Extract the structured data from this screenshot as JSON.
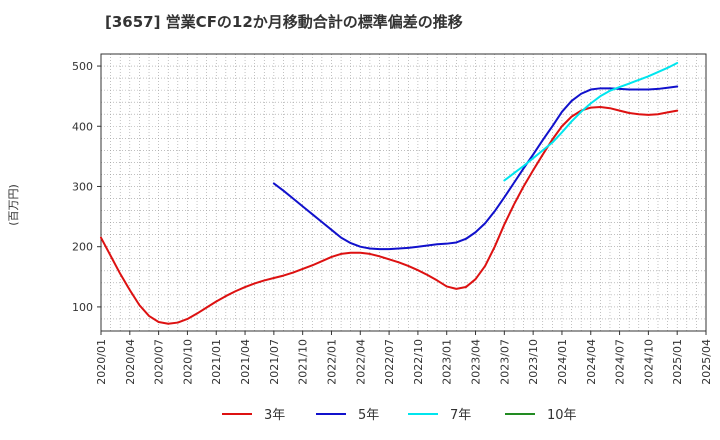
{
  "chart_data": {
    "type": "line",
    "title": "[3657]  営業CFの12か月移動合計の標準偏差の推移",
    "ylabel": "(百万円)",
    "xlabel": "",
    "ylim": [
      60,
      520
    ],
    "yticks": [
      100,
      200,
      300,
      400,
      500
    ],
    "x_tick_labels": [
      "2020/01",
      "2020/04",
      "2020/07",
      "2020/10",
      "2021/01",
      "2021/04",
      "2021/07",
      "2021/10",
      "2022/01",
      "2022/04",
      "2022/07",
      "2022/10",
      "2023/01",
      "2023/04",
      "2023/07",
      "2023/10",
      "2024/01",
      "2024/04",
      "2024/07",
      "2024/10",
      "2025/01",
      "2025/04"
    ],
    "grid": true,
    "legend_position": "bottom",
    "series": [
      {
        "name": "3年",
        "color": "#dd1111",
        "points": [
          [
            "2020/01",
            215
          ],
          [
            "2020/02",
            185
          ],
          [
            "2020/03",
            155
          ],
          [
            "2020/04",
            128
          ],
          [
            "2020/05",
            103
          ],
          [
            "2020/06",
            85
          ],
          [
            "2020/07",
            75
          ],
          [
            "2020/08",
            72
          ],
          [
            "2020/09",
            74
          ],
          [
            "2020/10",
            80
          ],
          [
            "2020/11",
            89
          ],
          [
            "2020/12",
            99
          ],
          [
            "2021/01",
            109
          ],
          [
            "2021/02",
            118
          ],
          [
            "2021/03",
            126
          ],
          [
            "2021/04",
            133
          ],
          [
            "2021/05",
            139
          ],
          [
            "2021/06",
            144
          ],
          [
            "2021/07",
            148
          ],
          [
            "2021/08",
            152
          ],
          [
            "2021/09",
            157
          ],
          [
            "2021/10",
            163
          ],
          [
            "2021/11",
            169
          ],
          [
            "2021/12",
            176
          ],
          [
            "2022/01",
            183
          ],
          [
            "2022/02",
            188
          ],
          [
            "2022/03",
            190
          ],
          [
            "2022/04",
            190
          ],
          [
            "2022/05",
            188
          ],
          [
            "2022/06",
            184
          ],
          [
            "2022/07",
            179
          ],
          [
            "2022/08",
            174
          ],
          [
            "2022/09",
            168
          ],
          [
            "2022/10",
            161
          ],
          [
            "2022/11",
            153
          ],
          [
            "2022/12",
            144
          ],
          [
            "2023/01",
            134
          ],
          [
            "2023/02",
            130
          ],
          [
            "2023/03",
            133
          ],
          [
            "2023/04",
            146
          ],
          [
            "2023/05",
            168
          ],
          [
            "2023/06",
            200
          ],
          [
            "2023/07",
            237
          ],
          [
            "2023/08",
            270
          ],
          [
            "2023/09",
            300
          ],
          [
            "2023/10",
            327
          ],
          [
            "2023/11",
            353
          ],
          [
            "2023/12",
            378
          ],
          [
            "2024/01",
            400
          ],
          [
            "2024/02",
            416
          ],
          [
            "2024/03",
            426
          ],
          [
            "2024/04",
            431
          ],
          [
            "2024/05",
            432
          ],
          [
            "2024/06",
            430
          ],
          [
            "2024/07",
            426
          ],
          [
            "2024/08",
            422
          ],
          [
            "2024/09",
            420
          ],
          [
            "2024/10",
            419
          ],
          [
            "2024/11",
            420
          ],
          [
            "2024/12",
            423
          ],
          [
            "2025/01",
            426
          ]
        ]
      },
      {
        "name": "5年",
        "color": "#1111cc",
        "points": [
          [
            "2021/07",
            305
          ],
          [
            "2021/08",
            293
          ],
          [
            "2021/09",
            280
          ],
          [
            "2021/10",
            267
          ],
          [
            "2021/11",
            254
          ],
          [
            "2021/12",
            241
          ],
          [
            "2022/01",
            228
          ],
          [
            "2022/02",
            215
          ],
          [
            "2022/03",
            206
          ],
          [
            "2022/04",
            200
          ],
          [
            "2022/05",
            197
          ],
          [
            "2022/06",
            196
          ],
          [
            "2022/07",
            196
          ],
          [
            "2022/08",
            197
          ],
          [
            "2022/09",
            198
          ],
          [
            "2022/10",
            200
          ],
          [
            "2022/11",
            202
          ],
          [
            "2022/12",
            204
          ],
          [
            "2023/01",
            205
          ],
          [
            "2023/02",
            207
          ],
          [
            "2023/03",
            213
          ],
          [
            "2023/04",
            224
          ],
          [
            "2023/05",
            239
          ],
          [
            "2023/06",
            259
          ],
          [
            "2023/07",
            282
          ],
          [
            "2023/08",
            306
          ],
          [
            "2023/09",
            330
          ],
          [
            "2023/10",
            353
          ],
          [
            "2023/11",
            377
          ],
          [
            "2023/12",
            400
          ],
          [
            "2024/01",
            424
          ],
          [
            "2024/02",
            442
          ],
          [
            "2024/03",
            454
          ],
          [
            "2024/04",
            461
          ],
          [
            "2024/05",
            463
          ],
          [
            "2024/06",
            463
          ],
          [
            "2024/07",
            462
          ],
          [
            "2024/08",
            461
          ],
          [
            "2024/09",
            461
          ],
          [
            "2024/10",
            461
          ],
          [
            "2024/11",
            462
          ],
          [
            "2024/12",
            464
          ],
          [
            "2025/01",
            466
          ]
        ]
      },
      {
        "name": "7年",
        "color": "#00e5ee",
        "points": [
          [
            "2023/07",
            310
          ],
          [
            "2023/08",
            322
          ],
          [
            "2023/09",
            334
          ],
          [
            "2023/10",
            347
          ],
          [
            "2023/11",
            360
          ],
          [
            "2023/12",
            373
          ],
          [
            "2024/01",
            390
          ],
          [
            "2024/02",
            408
          ],
          [
            "2024/03",
            424
          ],
          [
            "2024/04",
            438
          ],
          [
            "2024/05",
            450
          ],
          [
            "2024/06",
            459
          ],
          [
            "2024/07",
            465
          ],
          [
            "2024/08",
            471
          ],
          [
            "2024/09",
            477
          ],
          [
            "2024/10",
            483
          ],
          [
            "2024/11",
            490
          ],
          [
            "2024/12",
            497
          ],
          [
            "2025/01",
            505
          ]
        ]
      },
      {
        "name": "10年",
        "color": "#228b22",
        "points": []
      }
    ]
  }
}
